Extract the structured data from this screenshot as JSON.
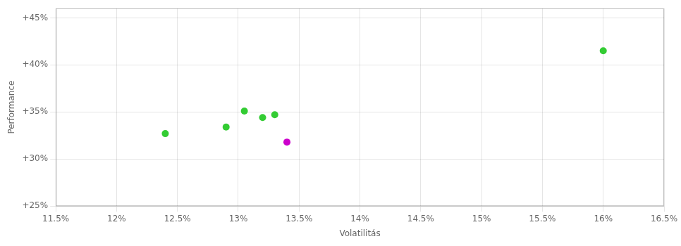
{
  "chart_data": {
    "type": "scatter",
    "xlabel": "Volatilitás",
    "ylabel": "Performance",
    "xlim": [
      0.115,
      0.165
    ],
    "ylim": [
      0.25,
      0.46
    ],
    "xticks": [
      {
        "value": 0.115,
        "label": "11.5%"
      },
      {
        "value": 0.12,
        "label": "12%"
      },
      {
        "value": 0.125,
        "label": "12.5%"
      },
      {
        "value": 0.13,
        "label": "13%"
      },
      {
        "value": 0.135,
        "label": "13.5%"
      },
      {
        "value": 0.14,
        "label": "14%"
      },
      {
        "value": 0.145,
        "label": "14.5%"
      },
      {
        "value": 0.15,
        "label": "15%"
      },
      {
        "value": 0.155,
        "label": "15.5%"
      },
      {
        "value": 0.16,
        "label": "16%"
      },
      {
        "value": 0.165,
        "label": "16.5%"
      }
    ],
    "yticks": [
      {
        "value": 0.25,
        "label": "+25%"
      },
      {
        "value": 0.3,
        "label": "+30%"
      },
      {
        "value": 0.35,
        "label": "+35%"
      },
      {
        "value": 0.4,
        "label": "+40%"
      },
      {
        "value": 0.45,
        "label": "+45%"
      }
    ],
    "grid": true,
    "series": [
      {
        "color": "#33cc33",
        "x": [
          0.124,
          0.129,
          0.1305,
          0.132,
          0.133,
          0.16
        ],
        "values": [
          0.327,
          0.334,
          0.351,
          0.344,
          0.347,
          0.415
        ]
      },
      {
        "color": "#cc00cc",
        "x": [
          0.134
        ],
        "values": [
          0.318
        ]
      }
    ]
  }
}
